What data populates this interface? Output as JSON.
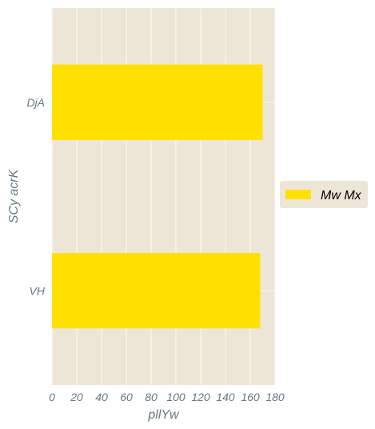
{
  "chart_data": {
    "type": "bar",
    "orientation": "horizontal",
    "categories": [
      "DjA",
      "VH"
    ],
    "series": [
      {
        "name": "Mw Mx",
        "values": [
          170,
          168
        ]
      }
    ],
    "xlabel": "pllYw",
    "ylabel": "SCy  acrK",
    "xlim": [
      0,
      180
    ],
    "xticks": [
      "0",
      "20",
      "40",
      "60",
      "80",
      "100",
      "120",
      "140",
      "160",
      "180"
    ],
    "grid": true,
    "legend_position": "right"
  },
  "colors": {
    "plot_background": "#ede6d6",
    "gridline": "#ffffff",
    "bar": "#ffe000",
    "axis_text": "#647880",
    "legend_background": "#ede6d6"
  }
}
